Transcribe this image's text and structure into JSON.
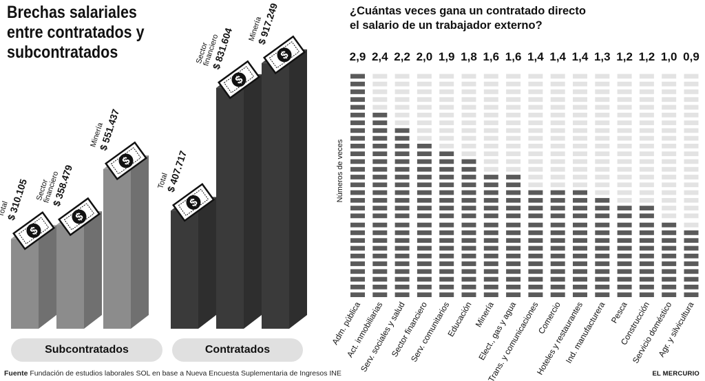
{
  "left_title": [
    "Brechas salariales",
    "entre contratados y",
    "subcontratados"
  ],
  "right_title": [
    "¿Cuántas veces gana un contratado directo",
    "el salario de un trabajador externo?"
  ],
  "groups": [
    {
      "label": "Subcontratados",
      "bars": [
        {
          "label_lines": [
            "Total"
          ],
          "value_text": "$ 310.105",
          "value": 310105
        },
        {
          "label_lines": [
            "Sector",
            "financiero"
          ],
          "value_text": "$ 358.479",
          "value": 358479
        },
        {
          "label_lines": [
            "Minería"
          ],
          "value_text": "$ 551.437",
          "value": 551437
        }
      ]
    },
    {
      "label": "Contratados",
      "bars": [
        {
          "label_lines": [
            "Total"
          ],
          "value_text": "$ 407.717",
          "value": 407717
        },
        {
          "label_lines": [
            "Sector",
            "financiero"
          ],
          "value_text": "$ 831.604",
          "value": 831604
        },
        {
          "label_lines": [
            "Minería"
          ],
          "value_text": "$ 917.249",
          "value": 917249
        }
      ]
    }
  ],
  "chart_data": [
    {
      "type": "bar",
      "title": "Brechas salariales entre contratados y subcontratados",
      "categories": [
        "Total",
        "Sector financiero",
        "Minería"
      ],
      "series": [
        {
          "name": "Subcontratados",
          "values": [
            310105,
            358479,
            551437
          ]
        },
        {
          "name": "Contratados",
          "values": [
            407717,
            831604,
            917249
          ]
        }
      ]
    },
    {
      "type": "bar",
      "title": "¿Cuántas veces gana un contratado directo el salario de un trabajador externo?",
      "ylabel": "Números de veces",
      "ylim": [
        0,
        3
      ],
      "categories": [
        "Adm. pública",
        "Act. inmobiliarias",
        "Serv. sociales y salud",
        "Sector financiero",
        "Serv. comunitarios",
        "Educación",
        "Minería",
        "Elect., gas y agua",
        "Trans. y comunicaciones",
        "Comercio",
        "Hoteles y restaurantes",
        "Ind. manufacturera",
        "Pesca",
        "Construcción",
        "Servicio doméstico",
        "Agr. y silvicultura"
      ],
      "values": [
        2.9,
        2.4,
        2.2,
        2.0,
        1.9,
        1.8,
        1.6,
        1.6,
        1.4,
        1.4,
        1.4,
        1.3,
        1.2,
        1.2,
        1.0,
        0.9
      ],
      "value_labels": [
        "2,9",
        "2,4",
        "2,2",
        "2,0",
        "1,9",
        "1,8",
        "1,6",
        "1,6",
        "1,4",
        "1,4",
        "1,4",
        "1,3",
        "1,2",
        "1,2",
        "1,0",
        "0,9"
      ]
    }
  ],
  "footer": {
    "source_label": "Fuente",
    "source_text": " Fundación de estudios laborales SOL en base a Nueva Encuesta Suplementaria de Ingresos INE"
  },
  "brand": "EL MERCURIO",
  "colors": {
    "sub_bar": "#8c8c8c",
    "con_bar": "#3a3a3a",
    "filled": "#5a5a5a",
    "empty": "#e3e3e3",
    "pill": "#e0e0e0"
  }
}
